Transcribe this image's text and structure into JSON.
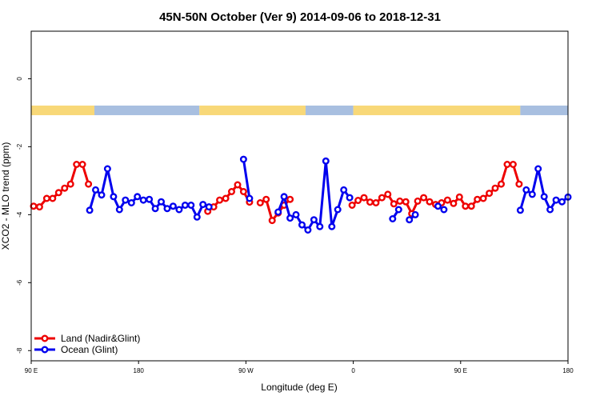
{
  "chart_data": {
    "type": "line",
    "title": "45N-50N October (Ver 9)   2014-09-06 to 2018-12-31",
    "xlabel": "Longitude (deg E)",
    "ylabel": "XCO2 - MLO trend (ppm)",
    "xlim": [
      90,
      540
    ],
    "ylim": [
      -8.3,
      1.4
    ],
    "x_ticks": [
      {
        "value": 90,
        "label": "90 E"
      },
      {
        "value": 180,
        "label": "180"
      },
      {
        "value": 270,
        "label": "90 W"
      },
      {
        "value": 360,
        "label": "0"
      },
      {
        "value": 450,
        "label": "90 E"
      },
      {
        "value": 540,
        "label": "180"
      }
    ],
    "y_ticks": [
      {
        "value": 0,
        "label": "0"
      },
      {
        "value": -2,
        "label": "-2"
      },
      {
        "value": -4,
        "label": "-4"
      },
      {
        "value": -6,
        "label": "-6"
      },
      {
        "value": -8,
        "label": "-8"
      }
    ],
    "grid": false,
    "legend_position": "bottom-left",
    "land_sea_strip": {
      "y": -0.93,
      "land_color": "#f8d878",
      "ocean_color": "#a8bfe0",
      "segments": [
        {
          "from": 90,
          "to": 143,
          "kind": "land"
        },
        {
          "from": 143,
          "to": 231,
          "kind": "ocean"
        },
        {
          "from": 231,
          "to": 320,
          "kind": "land"
        },
        {
          "from": 320,
          "to": 360,
          "kind": "ocean"
        },
        {
          "from": 360,
          "to": 500,
          "kind": "land"
        },
        {
          "from": 500,
          "to": 540,
          "kind": "ocean"
        }
      ]
    },
    "series": [
      {
        "name": "Land (Nadir&Glint)",
        "color": "#ee0000",
        "segments": [
          [
            [
              92,
              -3.75
            ],
            [
              97,
              -3.77
            ],
            [
              103,
              -3.52
            ],
            [
              108,
              -3.52
            ],
            [
              113,
              -3.35
            ],
            [
              118,
              -3.22
            ],
            [
              123,
              -3.1
            ],
            [
              128,
              -2.52
            ],
            [
              133,
              -2.52
            ],
            [
              138,
              -3.1
            ]
          ],
          [
            [
              238,
              -3.9
            ],
            [
              243,
              -3.77
            ],
            [
              248,
              -3.57
            ],
            [
              253,
              -3.52
            ],
            [
              258,
              -3.32
            ],
            [
              263,
              -3.12
            ],
            [
              268,
              -3.32
            ],
            [
              273,
              -3.63
            ]
          ],
          [
            [
              282,
              -3.65
            ],
            [
              287,
              -3.55
            ],
            [
              292,
              -4.17
            ],
            [
              297,
              -3.95
            ],
            [
              302,
              -3.72
            ],
            [
              307,
              -3.55
            ]
          ],
          [
            [
              359,
              -3.72
            ],
            [
              364,
              -3.58
            ],
            [
              369,
              -3.5
            ],
            [
              374,
              -3.63
            ],
            [
              379,
              -3.65
            ],
            [
              384,
              -3.5
            ],
            [
              389,
              -3.4
            ],
            [
              394,
              -3.68
            ],
            [
              399,
              -3.6
            ],
            [
              404,
              -3.62
            ],
            [
              409,
              -3.97
            ],
            [
              414,
              -3.6
            ],
            [
              419,
              -3.5
            ],
            [
              424,
              -3.62
            ],
            [
              429,
              -3.7
            ],
            [
              434,
              -3.65
            ],
            [
              439,
              -3.57
            ],
            [
              444,
              -3.67
            ],
            [
              449,
              -3.48
            ],
            [
              454,
              -3.75
            ],
            [
              459,
              -3.75
            ],
            [
              464,
              -3.55
            ],
            [
              469,
              -3.52
            ],
            [
              474,
              -3.37
            ],
            [
              479,
              -3.22
            ],
            [
              484,
              -3.1
            ],
            [
              489,
              -2.52
            ],
            [
              494,
              -2.52
            ],
            [
              499,
              -3.1
            ]
          ]
        ]
      },
      {
        "name": "Ocean (Glint)",
        "color": "#0000ee",
        "segments": [
          [
            [
              139,
              -3.87
            ],
            [
              144,
              -3.27
            ],
            [
              149,
              -3.42
            ],
            [
              154,
              -2.65
            ],
            [
              159,
              -3.47
            ],
            [
              164,
              -3.85
            ],
            [
              169,
              -3.57
            ],
            [
              174,
              -3.65
            ],
            [
              179,
              -3.47
            ],
            [
              184,
              -3.57
            ],
            [
              189,
              -3.55
            ],
            [
              194,
              -3.82
            ],
            [
              199,
              -3.62
            ],
            [
              204,
              -3.82
            ],
            [
              209,
              -3.75
            ],
            [
              214,
              -3.85
            ],
            [
              219,
              -3.72
            ],
            [
              224,
              -3.72
            ],
            [
              229,
              -4.07
            ],
            [
              234,
              -3.7
            ],
            [
              239,
              -3.77
            ]
          ],
          [
            [
              268,
              -2.37
            ],
            [
              273,
              -3.52
            ]
          ],
          [
            [
              297,
              -3.92
            ],
            [
              302,
              -3.47
            ],
            [
              307,
              -4.1
            ],
            [
              312,
              -4.0
            ],
            [
              317,
              -4.3
            ],
            [
              322,
              -4.45
            ],
            [
              327,
              -4.15
            ],
            [
              332,
              -4.35
            ],
            [
              337,
              -2.42
            ],
            [
              342,
              -4.35
            ],
            [
              347,
              -3.85
            ],
            [
              352,
              -3.27
            ],
            [
              357,
              -3.5
            ]
          ],
          [
            [
              393,
              -4.12
            ],
            [
              398,
              -3.85
            ]
          ],
          [
            [
              407,
              -4.15
            ],
            [
              412,
              -4.0
            ]
          ],
          [
            [
              431,
              -3.75
            ],
            [
              436,
              -3.85
            ]
          ],
          [
            [
              500,
              -3.87
            ],
            [
              505,
              -3.27
            ],
            [
              510,
              -3.4
            ],
            [
              515,
              -2.65
            ],
            [
              520,
              -3.47
            ],
            [
              525,
              -3.85
            ],
            [
              530,
              -3.57
            ],
            [
              535,
              -3.62
            ],
            [
              540,
              -3.48
            ]
          ]
        ]
      }
    ]
  }
}
